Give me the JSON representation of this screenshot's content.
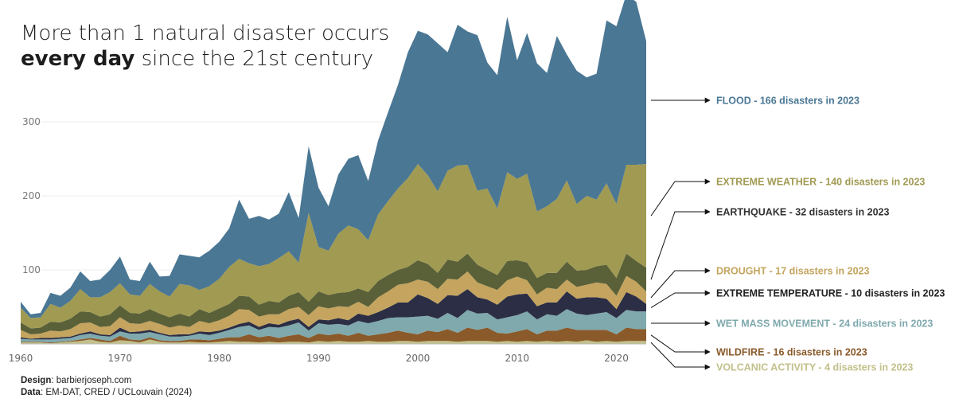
{
  "title": {
    "line1": "More than 1 natural disaster occurs",
    "line2_bold": "every day",
    "line2_rest": " since the 21st century"
  },
  "credits": {
    "design_label": "Design",
    "design_value": ": barbierjoseph.com",
    "data_label": "Data",
    "data_value": ": EM-DAT, CRED / UCLouvain (2024)"
  },
  "chart_data": {
    "type": "area",
    "stacked": true,
    "x": [
      1960,
      1961,
      1962,
      1963,
      1964,
      1965,
      1966,
      1967,
      1968,
      1969,
      1970,
      1971,
      1972,
      1973,
      1974,
      1975,
      1976,
      1977,
      1978,
      1979,
      1980,
      1981,
      1982,
      1983,
      1984,
      1985,
      1986,
      1987,
      1988,
      1989,
      1990,
      1991,
      1992,
      1993,
      1994,
      1995,
      1996,
      1997,
      1998,
      1999,
      2000,
      2001,
      2002,
      2003,
      2004,
      2005,
      2006,
      2007,
      2008,
      2009,
      2010,
      2011,
      2012,
      2013,
      2014,
      2015,
      2016,
      2017,
      2018,
      2019,
      2020,
      2021,
      2022,
      2023
    ],
    "xticks": [
      1960,
      1970,
      1980,
      1990,
      2000,
      2010,
      2020
    ],
    "yticks": [
      100,
      200,
      300
    ],
    "ylim": [
      0,
      440
    ],
    "grid": true,
    "series": [
      {
        "name": "VOLCANIC ACTIVITY",
        "color": "#c2c08a",
        "values": [
          2,
          2,
          2,
          1,
          2,
          3,
          4,
          6,
          3,
          2,
          5,
          4,
          2,
          6,
          3,
          2,
          2,
          3,
          2,
          2,
          3,
          4,
          3,
          3,
          2,
          3,
          2,
          3,
          3,
          2,
          4,
          3,
          4,
          3,
          3,
          4,
          3,
          3,
          4,
          4,
          3,
          4,
          4,
          4,
          3,
          4,
          4,
          4,
          3,
          4,
          3,
          4,
          3,
          4,
          3,
          4,
          3,
          5,
          3,
          4,
          3,
          4,
          4,
          4
        ]
      },
      {
        "name": "WILDFIRE",
        "color": "#8a5a2a",
        "values": [
          1,
          1,
          1,
          1,
          1,
          1,
          2,
          2,
          3,
          2,
          6,
          2,
          3,
          3,
          2,
          2,
          2,
          3,
          4,
          3,
          4,
          5,
          6,
          10,
          7,
          8,
          6,
          8,
          10,
          6,
          10,
          9,
          10,
          8,
          12,
          7,
          10,
          12,
          14,
          11,
          10,
          14,
          12,
          16,
          12,
          18,
          15,
          18,
          12,
          10,
          14,
          16,
          10,
          14,
          15,
          18,
          16,
          14,
          16,
          15,
          10,
          18,
          16,
          16
        ]
      },
      {
        "name": "WET MASS MOVEMENT",
        "color": "#7fa9ad",
        "values": [
          4,
          3,
          3,
          4,
          4,
          4,
          6,
          6,
          5,
          6,
          6,
          8,
          9,
          7,
          8,
          6,
          6,
          5,
          8,
          7,
          8,
          10,
          14,
          12,
          10,
          12,
          14,
          14,
          16,
          10,
          14,
          14,
          13,
          14,
          16,
          17,
          18,
          20,
          18,
          21,
          24,
          20,
          18,
          22,
          20,
          24,
          22,
          20,
          18,
          22,
          22,
          24,
          20,
          22,
          20,
          25,
          22,
          20,
          22,
          24,
          22,
          24,
          24,
          24
        ]
      },
      {
        "name": "EXTREME TEMPERATURE",
        "color": "#2c2e45",
        "values": [
          2,
          1,
          2,
          2,
          2,
          2,
          2,
          3,
          2,
          2,
          5,
          2,
          3,
          3,
          2,
          2,
          3,
          2,
          3,
          4,
          3,
          3,
          4,
          5,
          4,
          5,
          4,
          6,
          5,
          5,
          5,
          6,
          8,
          7,
          10,
          10,
          12,
          14,
          20,
          20,
          30,
          24,
          20,
          24,
          30,
          28,
          22,
          18,
          20,
          28,
          28,
          24,
          18,
          16,
          18,
          24,
          20,
          24,
          22,
          18,
          12,
          24,
          20,
          10
        ]
      },
      {
        "name": "DROUGHT",
        "color": "#c4a45e",
        "values": [
          10,
          6,
          6,
          10,
          8,
          10,
          14,
          12,
          10,
          12,
          14,
          12,
          10,
          12,
          12,
          10,
          12,
          10,
          14,
          12,
          14,
          16,
          20,
          16,
          14,
          12,
          14,
          16,
          16,
          16,
          18,
          16,
          16,
          18,
          16,
          12,
          20,
          22,
          24,
          26,
          20,
          22,
          20,
          22,
          22,
          24,
          20,
          18,
          20,
          22,
          24,
          18,
          16,
          20,
          18,
          16,
          16,
          17,
          20,
          20,
          18,
          22,
          20,
          17
        ]
      },
      {
        "name": "EARTHQUAKE",
        "color": "#5a6038",
        "values": [
          10,
          8,
          8,
          12,
          12,
          14,
          16,
          14,
          14,
          16,
          16,
          14,
          14,
          16,
          14,
          14,
          16,
          14,
          16,
          14,
          16,
          16,
          18,
          18,
          16,
          18,
          16,
          18,
          20,
          18,
          20,
          18,
          18,
          20,
          18,
          20,
          22,
          22,
          20,
          22,
          26,
          24,
          22,
          26,
          24,
          24,
          24,
          22,
          20,
          26,
          22,
          24,
          22,
          20,
          22,
          24,
          22,
          20,
          22,
          26,
          24,
          30,
          28,
          32
        ]
      },
      {
        "name": "EXTREME WEATHER",
        "color": "#a09a52",
        "values": [
          20,
          14,
          14,
          24,
          20,
          24,
          30,
          20,
          26,
          30,
          30,
          25,
          24,
          34,
          30,
          28,
          40,
          42,
          26,
          36,
          40,
          50,
          50,
          45,
          52,
          50,
          60,
          60,
          40,
          120,
          60,
          60,
          80,
          90,
          80,
          70,
          90,
          100,
          110,
          120,
          130,
          120,
          110,
          120,
          130,
          120,
          100,
          110,
          90,
          120,
          110,
          120,
          90,
          90,
          100,
          110,
          90,
          100,
          90,
          110,
          100,
          120,
          130,
          140
        ]
      },
      {
        "name": "FLOOD",
        "color": "#4a7794",
        "values": [
          8,
          5,
          6,
          15,
          16,
          18,
          24,
          22,
          24,
          30,
          36,
          20,
          20,
          30,
          20,
          28,
          40,
          40,
          44,
          48,
          50,
          52,
          80,
          60,
          68,
          60,
          60,
          80,
          60,
          90,
          80,
          60,
          80,
          90,
          100,
          80,
          100,
          120,
          140,
          170,
          180,
          190,
          200,
          160,
          190,
          180,
          210,
          170,
          180,
          210,
          160,
          190,
          200,
          180,
          220,
          170,
          180,
          160,
          170,
          220,
          240,
          230,
          220,
          166
        ]
      }
    ],
    "labels": [
      {
        "series": "FLOOD",
        "text": "FLOOD - 166 disasters in 2023",
        "color": "#4a7794"
      },
      {
        "series": "EXTREME WEATHER",
        "text": "EXTREME WEATHER - 140 disasters in 2023",
        "color": "#a09a52"
      },
      {
        "series": "EARTHQUAKE",
        "text": "EARTHQUAKE - 32 disasters in 2023",
        "color": "#333333"
      },
      {
        "series": "DROUGHT",
        "text": "DROUGHT - 17 disasters in 2023",
        "color": "#c4a45e"
      },
      {
        "series": "EXTREME TEMPERATURE",
        "text": "EXTREME TEMPERATURE - 10 disasters in 2023",
        "color": "#222222"
      },
      {
        "series": "WET MASS MOVEMENT",
        "text": "WET MASS MOVEMENT - 24 disasters in 2023",
        "color": "#7fa9ad"
      },
      {
        "series": "WILDFIRE",
        "text": "WILDFIRE - 16 disasters in 2023",
        "color": "#8a5a2a"
      },
      {
        "series": "VOLCANIC ACTIVITY",
        "text": "VOLCANIC ACTIVITY - 4 disasters in 2023",
        "color": "#c2c08a"
      }
    ]
  }
}
